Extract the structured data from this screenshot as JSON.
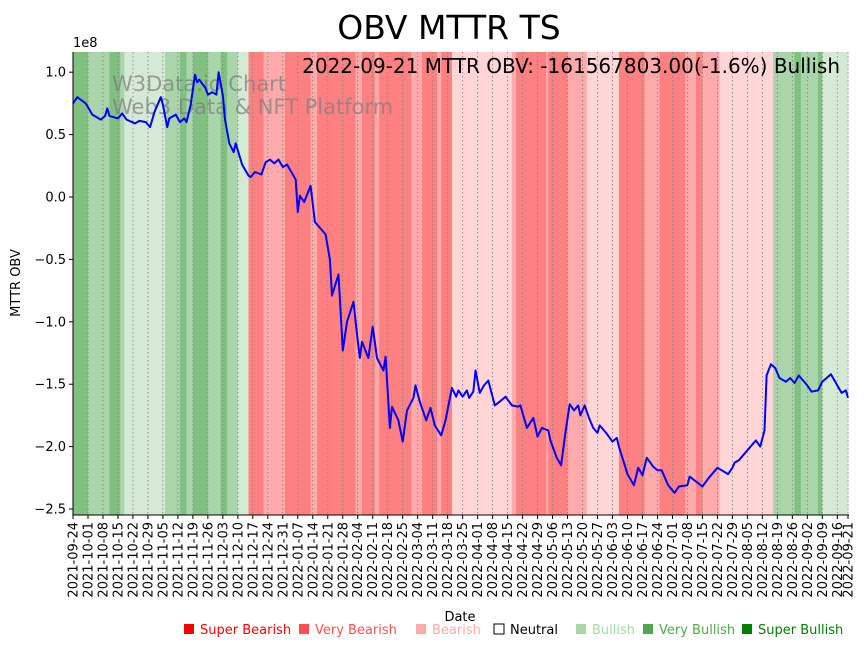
{
  "chart_data": {
    "type": "line",
    "title": "OBV MTTR TS",
    "xlabel": "Date",
    "ylabel": "MTTR OBV",
    "y_offset_label": "1e8",
    "y_unit_multiplier": 100000000,
    "ylim": [
      -2.55,
      1.16
    ],
    "xlim_days": [
      0,
      362
    ],
    "annotation": "2022-09-21 MTTR OBV: -161567803.00(-1.6%) Bullish",
    "watermark": [
      "W3Data.io Chart",
      "Web3 Data & NFT Platform"
    ],
    "yticks": [
      1.0,
      0.5,
      0.0,
      -0.5,
      -1.0,
      -1.5,
      -2.0,
      -2.5
    ],
    "ytick_labels": [
      "1.0",
      "0.5",
      "0.0",
      "−0.5",
      "−1.0",
      "−1.5",
      "−2.0",
      "−2.5"
    ],
    "start_date": "2021-09-24",
    "xtick_days": [
      0,
      7,
      14,
      21,
      28,
      35,
      42,
      49,
      56,
      63,
      70,
      77,
      84,
      91,
      98,
      105,
      112,
      119,
      126,
      133,
      140,
      147,
      154,
      161,
      168,
      175,
      182,
      189,
      196,
      203,
      210,
      217,
      224,
      231,
      238,
      245,
      252,
      259,
      266,
      273,
      280,
      287,
      294,
      301,
      308,
      315,
      322,
      329,
      336,
      343,
      350,
      357,
      362
    ],
    "xtick_labels": [
      "2021-09-24",
      "2021-10-01",
      "2021-10-08",
      "2021-10-15",
      "2021-10-22",
      "2021-10-29",
      "2021-11-05",
      "2021-11-12",
      "2021-11-19",
      "2021-11-26",
      "2021-12-03",
      "2021-12-10",
      "2021-12-17",
      "2021-12-24",
      "2021-12-31",
      "2022-01-07",
      "2022-01-14",
      "2022-01-21",
      "2022-01-28",
      "2022-02-04",
      "2022-02-11",
      "2022-02-18",
      "2022-02-25",
      "2022-03-04",
      "2022-03-11",
      "2022-03-18",
      "2022-03-25",
      "2022-04-01",
      "2022-04-08",
      "2022-04-15",
      "2022-04-22",
      "2022-04-29",
      "2022-05-06",
      "2022-05-13",
      "2022-05-20",
      "2022-05-27",
      "2022-06-03",
      "2022-06-10",
      "2022-06-17",
      "2022-06-24",
      "2022-07-01",
      "2022-07-08",
      "2022-07-15",
      "2022-07-22",
      "2022-07-29",
      "2022-08-05",
      "2022-08-12",
      "2022-08-19",
      "2022-08-26",
      "2022-09-02",
      "2022-09-09",
      "2022-09-16",
      "2022-09-21"
    ],
    "series": [
      {
        "name": "MTTR OBV",
        "color": "#0000ff",
        "points_day_value": [
          [
            0,
            0.75
          ],
          [
            2,
            0.8
          ],
          [
            6,
            0.75
          ],
          [
            9,
            0.66
          ],
          [
            13,
            0.62
          ],
          [
            15,
            0.65
          ],
          [
            16,
            0.71
          ],
          [
            17,
            0.65
          ],
          [
            21,
            0.63
          ],
          [
            23,
            0.67
          ],
          [
            25,
            0.62
          ],
          [
            29,
            0.59
          ],
          [
            31,
            0.61
          ],
          [
            34,
            0.6
          ],
          [
            36,
            0.56
          ],
          [
            38,
            0.68
          ],
          [
            41,
            0.8
          ],
          [
            42,
            0.74
          ],
          [
            44,
            0.56
          ],
          [
            45,
            0.63
          ],
          [
            48,
            0.66
          ],
          [
            50,
            0.6
          ],
          [
            52,
            0.63
          ],
          [
            53,
            0.6
          ],
          [
            55,
            0.74
          ],
          [
            57,
            0.98
          ],
          [
            58,
            0.92
          ],
          [
            59,
            0.94
          ],
          [
            62,
            0.87
          ],
          [
            63,
            0.82
          ],
          [
            65,
            0.84
          ],
          [
            67,
            0.82
          ],
          [
            68,
            1.0
          ],
          [
            70,
            0.81
          ],
          [
            71,
            0.62
          ],
          [
            73,
            0.43
          ],
          [
            75,
            0.36
          ],
          [
            76,
            0.43
          ],
          [
            79,
            0.26
          ],
          [
            82,
            0.17
          ],
          [
            83,
            0.16
          ],
          [
            85,
            0.2
          ],
          [
            88,
            0.18
          ],
          [
            90,
            0.28
          ],
          [
            92,
            0.3
          ],
          [
            94,
            0.27
          ],
          [
            96,
            0.3
          ],
          [
            98,
            0.24
          ],
          [
            100,
            0.26
          ],
          [
            104,
            0.14
          ],
          [
            105,
            -0.12
          ],
          [
            106,
            0.01
          ],
          [
            108,
            -0.04
          ],
          [
            111,
            0.09
          ],
          [
            113,
            -0.2
          ],
          [
            118,
            -0.3
          ],
          [
            120,
            -0.5
          ],
          [
            121,
            -0.79
          ],
          [
            124,
            -0.62
          ],
          [
            126,
            -1.23
          ],
          [
            128,
            -1.0
          ],
          [
            131,
            -0.84
          ],
          [
            133,
            -1.15
          ],
          [
            134,
            -1.29
          ],
          [
            135,
            -1.16
          ],
          [
            138,
            -1.29
          ],
          [
            140,
            -1.04
          ],
          [
            142,
            -1.29
          ],
          [
            145,
            -1.39
          ],
          [
            146,
            -1.28
          ],
          [
            148,
            -1.85
          ],
          [
            149,
            -1.68
          ],
          [
            152,
            -1.79
          ],
          [
            154,
            -1.96
          ],
          [
            156,
            -1.71
          ],
          [
            159,
            -1.61
          ],
          [
            160,
            -1.51
          ],
          [
            162,
            -1.64
          ],
          [
            165,
            -1.79
          ],
          [
            167,
            -1.69
          ],
          [
            169,
            -1.83
          ],
          [
            172,
            -1.91
          ],
          [
            174,
            -1.79
          ],
          [
            177,
            -1.53
          ],
          [
            179,
            -1.6
          ],
          [
            180,
            -1.55
          ],
          [
            182,
            -1.6
          ],
          [
            184,
            -1.55
          ],
          [
            185,
            -1.61
          ],
          [
            187,
            -1.56
          ],
          [
            188,
            -1.39
          ],
          [
            190,
            -1.57
          ],
          [
            192,
            -1.51
          ],
          [
            194,
            -1.47
          ],
          [
            197,
            -1.67
          ],
          [
            200,
            -1.63
          ],
          [
            202,
            -1.6
          ],
          [
            205,
            -1.67
          ],
          [
            208,
            -1.68
          ],
          [
            209,
            -1.67
          ],
          [
            212,
            -1.85
          ],
          [
            215,
            -1.77
          ],
          [
            217,
            -1.92
          ],
          [
            219,
            -1.85
          ],
          [
            222,
            -1.87
          ],
          [
            223,
            -1.95
          ],
          [
            226,
            -2.09
          ],
          [
            228,
            -2.15
          ],
          [
            230,
            -1.89
          ],
          [
            232,
            -1.66
          ],
          [
            234,
            -1.71
          ],
          [
            236,
            -1.67
          ],
          [
            237,
            -1.75
          ],
          [
            239,
            -1.67
          ],
          [
            241,
            -1.77
          ],
          [
            243,
            -1.85
          ],
          [
            245,
            -1.89
          ],
          [
            246,
            -1.83
          ],
          [
            249,
            -1.89
          ],
          [
            252,
            -1.96
          ],
          [
            254,
            -1.93
          ],
          [
            255,
            -2.0
          ],
          [
            257,
            -2.11
          ],
          [
            259,
            -2.22
          ],
          [
            262,
            -2.31
          ],
          [
            264,
            -2.17
          ],
          [
            266,
            -2.23
          ],
          [
            268,
            -2.09
          ],
          [
            271,
            -2.16
          ],
          [
            273,
            -2.19
          ],
          [
            275,
            -2.19
          ],
          [
            278,
            -2.31
          ],
          [
            281,
            -2.37
          ],
          [
            283,
            -2.32
          ],
          [
            287,
            -2.31
          ],
          [
            288,
            -2.24
          ],
          [
            291,
            -2.28
          ],
          [
            294,
            -2.32
          ],
          [
            297,
            -2.25
          ],
          [
            301,
            -2.17
          ],
          [
            303,
            -2.19
          ],
          [
            306,
            -2.22
          ],
          [
            308,
            -2.17
          ],
          [
            309,
            -2.13
          ],
          [
            311,
            -2.11
          ],
          [
            313,
            -2.07
          ],
          [
            316,
            -2.01
          ],
          [
            319,
            -1.95
          ],
          [
            321,
            -2.0
          ],
          [
            323,
            -1.87
          ],
          [
            324,
            -1.43
          ],
          [
            326,
            -1.34
          ],
          [
            328,
            -1.37
          ],
          [
            330,
            -1.45
          ],
          [
            333,
            -1.48
          ],
          [
            335,
            -1.45
          ],
          [
            337,
            -1.49
          ],
          [
            339,
            -1.43
          ],
          [
            343,
            -1.51
          ],
          [
            345,
            -1.56
          ],
          [
            348,
            -1.55
          ],
          [
            350,
            -1.48
          ],
          [
            354,
            -1.42
          ],
          [
            356,
            -1.48
          ],
          [
            359,
            -1.57
          ],
          [
            361,
            -1.55
          ],
          [
            362,
            -1.61
          ]
        ]
      }
    ],
    "sentiment_bands_day_range_level": [
      [
        0,
        7,
        3
      ],
      [
        7,
        17,
        2
      ],
      [
        17,
        22,
        3
      ],
      [
        22,
        24,
        2
      ],
      [
        24,
        43,
        1
      ],
      [
        43,
        50,
        2
      ],
      [
        50,
        53,
        3
      ],
      [
        53,
        56,
        2
      ],
      [
        56,
        63,
        3
      ],
      [
        63,
        69,
        2
      ],
      [
        69,
        72,
        3
      ],
      [
        72,
        77,
        2
      ],
      [
        77,
        82,
        1
      ],
      [
        82,
        89,
        -3
      ],
      [
        89,
        99,
        -2
      ],
      [
        99,
        111,
        -3
      ],
      [
        111,
        114,
        -2
      ],
      [
        114,
        132,
        -3
      ],
      [
        132,
        135,
        -2
      ],
      [
        135,
        141,
        -3
      ],
      [
        141,
        143,
        -2
      ],
      [
        143,
        158,
        -3
      ],
      [
        158,
        163,
        -2
      ],
      [
        163,
        170,
        -3
      ],
      [
        170,
        172,
        -2
      ],
      [
        172,
        177,
        -3
      ],
      [
        177,
        205,
        -1
      ],
      [
        205,
        207,
        -2
      ],
      [
        207,
        221,
        -3
      ],
      [
        221,
        222,
        -2
      ],
      [
        222,
        231,
        -3
      ],
      [
        231,
        240,
        -2
      ],
      [
        240,
        255,
        -1
      ],
      [
        255,
        267,
        -3
      ],
      [
        267,
        274,
        -2
      ],
      [
        274,
        286,
        -3
      ],
      [
        286,
        291,
        -2
      ],
      [
        291,
        294,
        -3
      ],
      [
        294,
        302,
        -2
      ],
      [
        302,
        327,
        -1
      ],
      [
        327,
        337,
        2
      ],
      [
        337,
        340,
        3
      ],
      [
        340,
        348,
        2
      ],
      [
        348,
        350,
        3
      ],
      [
        350,
        362,
        1
      ]
    ],
    "band_colors": {
      "3": "#80c080",
      "2": "#aad5aa",
      "1": "#d5ead5",
      "-1": "#ffd5d5",
      "-2": "#ffaaaa",
      "-3": "#ff8080"
    },
    "legend": [
      {
        "label": "Super Bearish",
        "color": "#ff0000",
        "text_color": "#ff0000"
      },
      {
        "label": "Very Bearish",
        "color": "#ff5050",
        "text_color": "#ff5050"
      },
      {
        "label": "Bearish",
        "color": "#ffaaaa",
        "text_color": "#ffaaaa"
      },
      {
        "label": "Neutral",
        "color": "#ffffff",
        "text_color": "#000000"
      },
      {
        "label": "Bullish",
        "color": "#a8d8a8",
        "text_color": "#a8d8a8"
      },
      {
        "label": "Very Bullish",
        "color": "#50a850",
        "text_color": "#50a850"
      },
      {
        "label": "Super Bullish",
        "color": "#008000",
        "text_color": "#008000"
      }
    ],
    "legend_placement": "bottom"
  }
}
